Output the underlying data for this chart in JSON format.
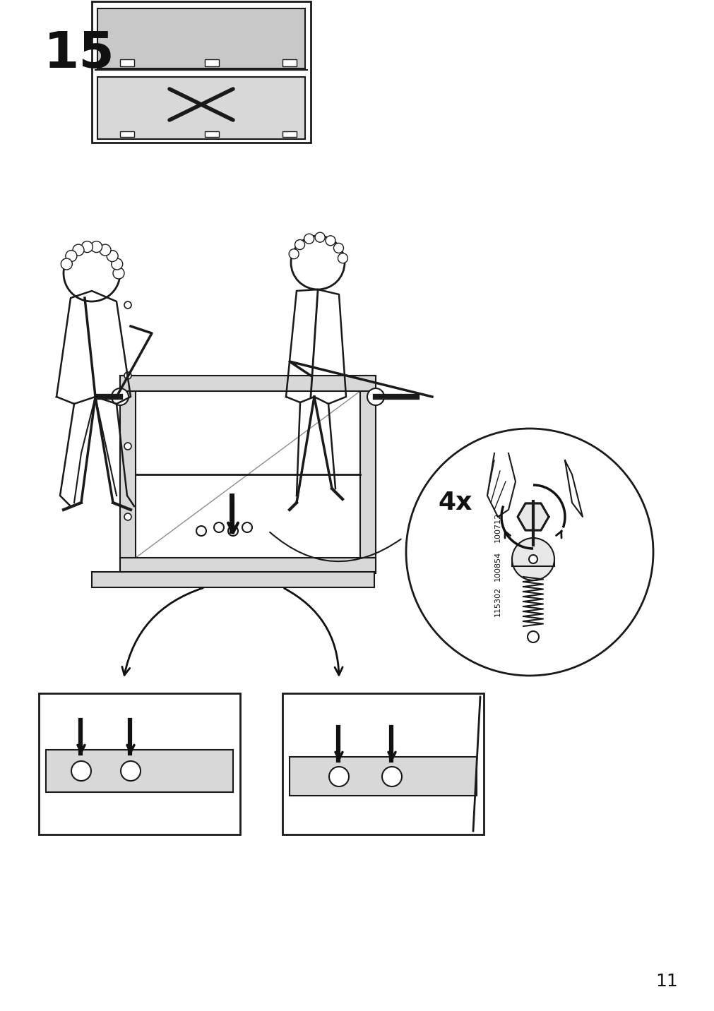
{
  "page_number": "11",
  "step_number": "15",
  "background_color": "#ffffff",
  "line_color": "#1a1a1a",
  "gray_fill": "#c8c8c8",
  "light_gray": "#d8d8d8",
  "dark_color": "#111111",
  "part_ids": [
    "100712",
    "100854",
    "115302"
  ],
  "multiplier": "4x",
  "figure_width": 10.12,
  "figure_height": 14.32
}
